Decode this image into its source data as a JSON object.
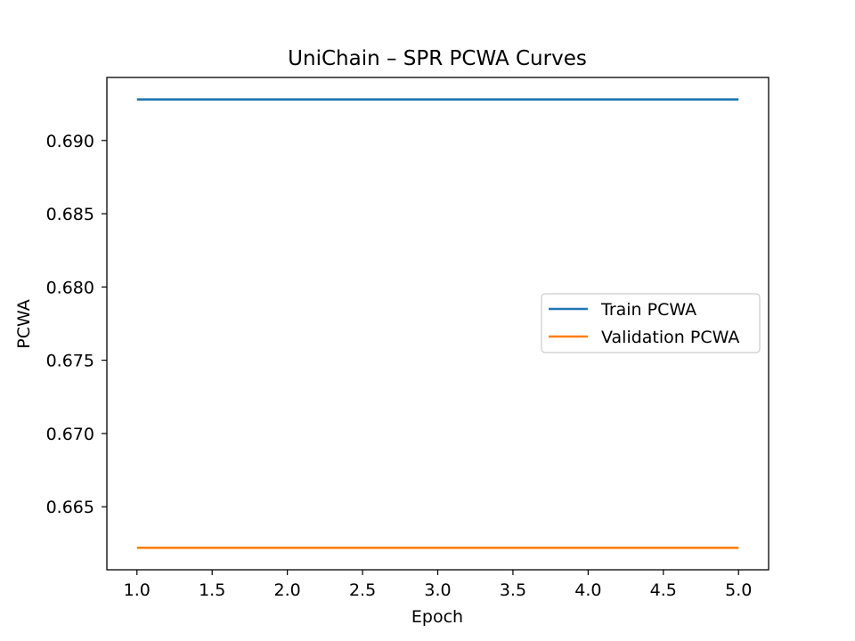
{
  "chart_data": {
    "type": "line",
    "title": "UniChain – SPR PCWA Curves",
    "xlabel": "Epoch",
    "ylabel": "PCWA",
    "x": [
      1,
      2,
      3,
      4,
      5
    ],
    "series": [
      {
        "name": "Train PCWA",
        "color": "#1f77b4",
        "values": [
          0.6928,
          0.6928,
          0.6928,
          0.6928,
          0.6928
        ]
      },
      {
        "name": "Validation PCWA",
        "color": "#ff7f0e",
        "values": [
          0.6622,
          0.6622,
          0.6622,
          0.6622,
          0.6622
        ]
      }
    ],
    "xlim": [
      0.8,
      5.2
    ],
    "ylim": [
      0.6607,
      0.6943
    ],
    "xticks": [
      "1.0",
      "1.5",
      "2.0",
      "2.5",
      "3.0",
      "3.5",
      "4.0",
      "4.5",
      "5.0"
    ],
    "yticks": [
      "0.665",
      "0.670",
      "0.675",
      "0.680",
      "0.685",
      "0.690"
    ],
    "grid": false,
    "legend": "center-right"
  }
}
